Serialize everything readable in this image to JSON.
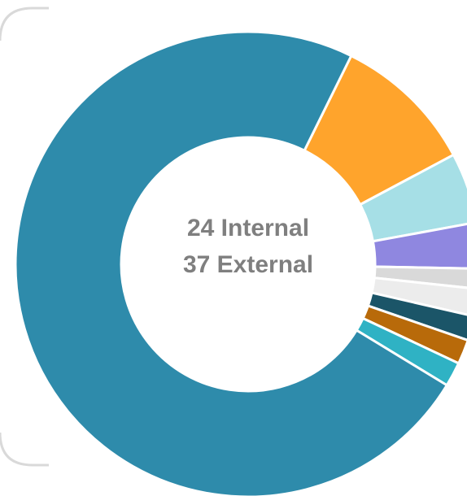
{
  "chart_data": {
    "type": "donut",
    "annotations": [
      "24 Internal",
      "37 External"
    ],
    "values": [
      9.9,
      4.9,
      3.2,
      1.4,
      1.9,
      1.7,
      1.7,
      1.7,
      73.6
    ],
    "colors": [
      "#ffa42c",
      "#a6dfe6",
      "#8f87e0",
      "#d9d9d9",
      "#ececec",
      "#1b5568",
      "#b86a0a",
      "#2fb2c4",
      "#2e8bab"
    ]
  }
}
